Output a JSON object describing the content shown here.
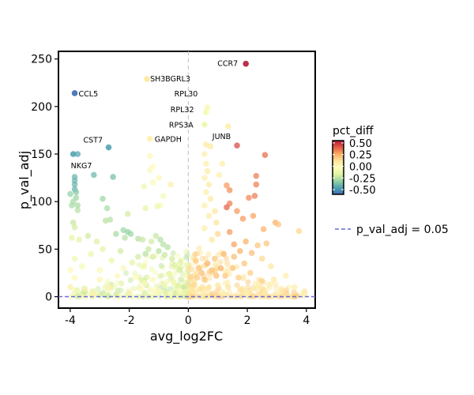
{
  "chart_data": {
    "type": "scatter",
    "title": "",
    "xlabel": "avg_log2FC",
    "ylabel": "p_val_adj",
    "xlim": [
      -4.4,
      4.3
    ],
    "ylim": [
      -12,
      258
    ],
    "x_ticks": [
      -4,
      -2,
      0,
      2,
      4
    ],
    "y_ticks": [
      0,
      50,
      100,
      150,
      200,
      250
    ],
    "grid": false,
    "vline": 0,
    "threshold": {
      "value": 0.05,
      "label": "p_val_adj = 0.05",
      "color": "#6a6ad8"
    },
    "color_scale": {
      "title": "pct_diff",
      "min": -0.6,
      "max": 0.55,
      "ticks": [
        0.5,
        0.25,
        0.0,
        -0.25,
        -0.5
      ],
      "tick_labels": [
        "0.50",
        "0.25",
        "0.00",
        "-0.25",
        "-0.50"
      ],
      "palette": "Spectral",
      "stops": [
        "#3d6db4",
        "#4fa3b3",
        "#96d4a4",
        "#e3f3a2",
        "#fffcbd",
        "#fde49a",
        "#fcad62",
        "#e45b45",
        "#b6193a"
      ]
    },
    "legend_position": "right",
    "labeled_points": [
      {
        "gene": "CCR7",
        "x": 1.95,
        "y": 245,
        "pct_diff": 0.55
      },
      {
        "gene": "SH3BGRL3",
        "x": -1.4,
        "y": 229,
        "pct_diff": 0.1
      },
      {
        "gene": "CCL5",
        "x": -3.85,
        "y": 214,
        "pct_diff": -0.6
      },
      {
        "gene": "RPL30",
        "x": 0.65,
        "y": 199,
        "pct_diff": -0.05
      },
      {
        "gene": "RPL32",
        "x": 0.6,
        "y": 194,
        "pct_diff": -0.08
      },
      {
        "gene": "RPS3A",
        "x": 0.55,
        "y": 181,
        "pct_diff": -0.1
      },
      {
        "gene": "JUNB",
        "x": 1.35,
        "y": 179,
        "pct_diff": 0.05
      },
      {
        "gene": "GAPDH",
        "x": -1.3,
        "y": 166,
        "pct_diff": 0.05
      },
      {
        "gene": "CST7",
        "x": -2.7,
        "y": 157,
        "pct_diff": -0.45
      },
      {
        "gene": "NKG7",
        "x": -3.9,
        "y": 150,
        "pct_diff": -0.45
      }
    ],
    "points": [
      {
        "x": 1.65,
        "y": 159,
        "c": 0.45
      },
      {
        "x": 2.6,
        "y": 149,
        "c": 0.38
      },
      {
        "x": -3.75,
        "y": 150,
        "c": -0.45
      },
      {
        "x": -3.2,
        "y": 128,
        "c": -0.4
      },
      {
        "x": -2.55,
        "y": 126,
        "c": -0.38
      },
      {
        "x": -3.85,
        "y": 126,
        "c": -0.4
      },
      {
        "x": -3.85,
        "y": 122,
        "c": -0.4
      },
      {
        "x": -3.85,
        "y": 118,
        "c": -0.4
      },
      {
        "x": -3.85,
        "y": 113,
        "c": -0.4
      },
      {
        "x": -4.0,
        "y": 108,
        "c": -0.32
      },
      {
        "x": -3.8,
        "y": 110,
        "c": -0.35
      },
      {
        "x": -3.8,
        "y": 104,
        "c": -0.3
      },
      {
        "x": -2.9,
        "y": 103,
        "c": -0.3
      },
      {
        "x": -3.9,
        "y": 100,
        "c": -0.28
      },
      {
        "x": -3.75,
        "y": 96,
        "c": -0.28
      },
      {
        "x": -3.75,
        "y": 91,
        "c": -0.25
      },
      {
        "x": -3.95,
        "y": 96,
        "c": -0.28
      },
      {
        "x": -2.75,
        "y": 93,
        "c": -0.28
      },
      {
        "x": -2.65,
        "y": 81,
        "c": -0.25
      },
      {
        "x": -2.8,
        "y": 80,
        "c": -0.25
      },
      {
        "x": -3.9,
        "y": 78,
        "c": -0.22
      },
      {
        "x": -3.85,
        "y": 73,
        "c": -0.2
      },
      {
        "x": -2.05,
        "y": 87,
        "c": -0.2
      },
      {
        "x": -1.45,
        "y": 93,
        "c": -0.15
      },
      {
        "x": -1.5,
        "y": 116,
        "c": -0.1
      },
      {
        "x": -0.85,
        "y": 106,
        "c": -0.08
      },
      {
        "x": -1.0,
        "y": 125,
        "c": -0.05
      },
      {
        "x": -1.2,
        "y": 137,
        "c": -0.02
      },
      {
        "x": -1.2,
        "y": 120,
        "c": -0.05
      },
      {
        "x": -0.95,
        "y": 96,
        "c": -0.05
      },
      {
        "x": -0.6,
        "y": 118,
        "c": 0.05
      },
      {
        "x": -1.05,
        "y": 95,
        "c": -0.1
      },
      {
        "x": -1.3,
        "y": 148,
        "c": 0.0
      },
      {
        "x": -1.3,
        "y": 133,
        "c": -0.05
      },
      {
        "x": 2.3,
        "y": 127,
        "c": 0.35
      },
      {
        "x": 2.3,
        "y": 118,
        "c": 0.35
      },
      {
        "x": 1.3,
        "y": 117,
        "c": 0.3
      },
      {
        "x": 1.4,
        "y": 112,
        "c": 0.32
      },
      {
        "x": 2.25,
        "y": 106,
        "c": 0.35
      },
      {
        "x": 2.05,
        "y": 104,
        "c": 0.33
      },
      {
        "x": 1.4,
        "y": 98,
        "c": 0.35
      },
      {
        "x": 1.3,
        "y": 94,
        "c": 0.4
      },
      {
        "x": 1.65,
        "y": 90,
        "c": 0.3
      },
      {
        "x": 1.85,
        "y": 82,
        "c": 0.3
      },
      {
        "x": 2.2,
        "y": 85,
        "c": 0.28
      },
      {
        "x": 2.95,
        "y": 78,
        "c": 0.25
      },
      {
        "x": 3.05,
        "y": 76,
        "c": 0.2
      },
      {
        "x": 3.75,
        "y": 69,
        "c": 0.15
      },
      {
        "x": 2.55,
        "y": 71,
        "c": 0.25
      },
      {
        "x": 1.4,
        "y": 68,
        "c": 0.3
      },
      {
        "x": 1.55,
        "y": 55,
        "c": 0.28
      },
      {
        "x": 1.95,
        "y": 58,
        "c": 0.25
      },
      {
        "x": 2.35,
        "y": 54,
        "c": 0.2
      },
      {
        "x": 2.65,
        "y": 56,
        "c": 0.2
      },
      {
        "x": 1.75,
        "y": 48,
        "c": 0.25
      },
      {
        "x": 2.15,
        "y": 46,
        "c": 0.22
      },
      {
        "x": 0.6,
        "y": 160,
        "c": 0.08
      },
      {
        "x": 0.75,
        "y": 158,
        "c": 0.08
      },
      {
        "x": 0.55,
        "y": 150,
        "c": 0.05
      },
      {
        "x": 0.6,
        "y": 140,
        "c": 0.05
      },
      {
        "x": 0.65,
        "y": 132,
        "c": 0.08
      },
      {
        "x": 0.55,
        "y": 125,
        "c": 0.05
      },
      {
        "x": 0.7,
        "y": 118,
        "c": 0.08
      },
      {
        "x": 0.6,
        "y": 110,
        "c": 0.05
      },
      {
        "x": 0.75,
        "y": 103,
        "c": 0.08
      },
      {
        "x": 0.55,
        "y": 96,
        "c": 0.05
      },
      {
        "x": 0.9,
        "y": 90,
        "c": 0.1
      },
      {
        "x": 0.7,
        "y": 85,
        "c": 0.08
      },
      {
        "x": 0.95,
        "y": 78,
        "c": 0.12
      },
      {
        "x": 0.55,
        "y": 72,
        "c": 0.05
      },
      {
        "x": 1.0,
        "y": 66,
        "c": 0.15
      },
      {
        "x": 0.8,
        "y": 60,
        "c": 0.1
      },
      {
        "x": 1.15,
        "y": 140,
        "c": 0.05
      },
      {
        "x": 1.05,
        "y": 128,
        "c": 0.05
      },
      {
        "x": -2.2,
        "y": 70,
        "c": -0.3
      },
      {
        "x": -2.05,
        "y": 68,
        "c": -0.32
      },
      {
        "x": -1.95,
        "y": 66,
        "c": -0.3
      },
      {
        "x": -2.45,
        "y": 66,
        "c": -0.28
      },
      {
        "x": -2.15,
        "y": 62,
        "c": -0.25
      },
      {
        "x": -1.7,
        "y": 61,
        "c": -0.25
      },
      {
        "x": -1.55,
        "y": 60,
        "c": -0.22
      },
      {
        "x": -1.25,
        "y": 58,
        "c": -0.2
      },
      {
        "x": -1.1,
        "y": 64,
        "c": -0.22
      },
      {
        "x": -0.95,
        "y": 60,
        "c": -0.25
      },
      {
        "x": -0.85,
        "y": 55,
        "c": -0.25
      },
      {
        "x": -0.7,
        "y": 52,
        "c": -0.25
      },
      {
        "x": -1.35,
        "y": 50,
        "c": -0.22
      },
      {
        "x": -1.0,
        "y": 48,
        "c": -0.25
      },
      {
        "x": -1.45,
        "y": 45,
        "c": -0.25
      },
      {
        "x": -0.8,
        "y": 44,
        "c": -0.22
      },
      {
        "x": -1.7,
        "y": 42,
        "c": -0.2
      },
      {
        "x": -1.2,
        "y": 42,
        "c": -0.2
      },
      {
        "x": -0.55,
        "y": 40,
        "c": -0.2
      },
      {
        "x": -2.3,
        "y": 48,
        "c": -0.2
      },
      {
        "x": -3.4,
        "y": 64,
        "c": -0.2
      },
      {
        "x": -3.1,
        "y": 58,
        "c": -0.18
      },
      {
        "x": -3.7,
        "y": 60,
        "c": -0.15
      },
      {
        "x": -3.95,
        "y": 62,
        "c": -0.15
      },
      {
        "x": -2.9,
        "y": 50,
        "c": -0.15
      },
      {
        "x": -3.3,
        "y": 45,
        "c": -0.12
      },
      {
        "x": -3.85,
        "y": 40,
        "c": -0.1
      },
      {
        "x": -2.6,
        "y": 38,
        "c": -0.12
      },
      {
        "x": -1.9,
        "y": 36,
        "c": -0.15
      },
      {
        "x": -0.3,
        "y": 28,
        "c": -0.2
      },
      {
        "x": -0.45,
        "y": 33,
        "c": -0.18
      },
      {
        "x": -0.65,
        "y": 24,
        "c": -0.15
      },
      {
        "x": -0.25,
        "y": 18,
        "c": -0.2
      },
      {
        "x": -0.15,
        "y": 10,
        "c": -0.22
      },
      {
        "x": -0.1,
        "y": 5,
        "c": -0.15
      },
      {
        "x": -0.35,
        "y": 12,
        "c": -0.18
      },
      {
        "x": -0.5,
        "y": 15,
        "c": -0.12
      },
      {
        "x": -1.5,
        "y": 32,
        "c": -0.1
      },
      {
        "x": -2.2,
        "y": 30,
        "c": -0.05
      },
      {
        "x": -3.0,
        "y": 28,
        "c": -0.05
      },
      {
        "x": -3.6,
        "y": 32,
        "c": -0.08
      },
      {
        "x": -4.0,
        "y": 28,
        "c": 0.0
      },
      {
        "x": -3.85,
        "y": 20,
        "c": 0.0
      },
      {
        "x": -3.0,
        "y": 18,
        "c": 0.02
      },
      {
        "x": -2.4,
        "y": 22,
        "c": 0.0
      },
      {
        "x": -1.8,
        "y": 20,
        "c": -0.02
      },
      {
        "x": -1.2,
        "y": 18,
        "c": -0.05
      },
      {
        "x": -0.8,
        "y": 12,
        "c": -0.08
      },
      {
        "x": -2.7,
        "y": 10,
        "c": 0.03
      },
      {
        "x": -3.5,
        "y": 8,
        "c": 0.05
      },
      {
        "x": -1.6,
        "y": 8,
        "c": 0.0
      },
      {
        "x": -1.0,
        "y": 6,
        "c": 0.0
      },
      {
        "x": -2.0,
        "y": 4,
        "c": 0.02
      },
      {
        "x": -3.2,
        "y": 3,
        "c": 0.03
      },
      {
        "x": -0.6,
        "y": 3,
        "c": -0.05
      },
      {
        "x": -4.0,
        "y": 10,
        "c": 0.05
      },
      {
        "x": 0.25,
        "y": 38,
        "c": 0.2
      },
      {
        "x": 0.35,
        "y": 30,
        "c": 0.2
      },
      {
        "x": 0.45,
        "y": 25,
        "c": 0.22
      },
      {
        "x": 0.3,
        "y": 20,
        "c": 0.18
      },
      {
        "x": 0.55,
        "y": 18,
        "c": 0.2
      },
      {
        "x": 0.2,
        "y": 12,
        "c": 0.15
      },
      {
        "x": 0.65,
        "y": 35,
        "c": 0.25
      },
      {
        "x": 0.8,
        "y": 28,
        "c": 0.2
      },
      {
        "x": 0.95,
        "y": 22,
        "c": 0.22
      },
      {
        "x": 1.1,
        "y": 30,
        "c": 0.25
      },
      {
        "x": 0.9,
        "y": 40,
        "c": 0.2
      },
      {
        "x": 1.25,
        "y": 22,
        "c": 0.2
      },
      {
        "x": 1.5,
        "y": 30,
        "c": 0.2
      },
      {
        "x": 1.7,
        "y": 20,
        "c": 0.18
      },
      {
        "x": 1.9,
        "y": 35,
        "c": 0.2
      },
      {
        "x": 2.1,
        "y": 25,
        "c": 0.18
      },
      {
        "x": 0.15,
        "y": 6,
        "c": 0.1
      },
      {
        "x": 0.4,
        "y": 8,
        "c": 0.12
      },
      {
        "x": 0.7,
        "y": 10,
        "c": 0.12
      },
      {
        "x": 1.0,
        "y": 12,
        "c": 0.1
      },
      {
        "x": 1.35,
        "y": 10,
        "c": 0.12
      },
      {
        "x": 1.8,
        "y": 8,
        "c": 0.1
      },
      {
        "x": 2.4,
        "y": 12,
        "c": 0.08
      },
      {
        "x": 2.9,
        "y": 18,
        "c": 0.08
      },
      {
        "x": 3.3,
        "y": 22,
        "c": 0.05
      },
      {
        "x": 3.6,
        "y": 10,
        "c": 0.05
      },
      {
        "x": 2.6,
        "y": 5,
        "c": 0.05
      },
      {
        "x": 3.0,
        "y": 4,
        "c": 0.05
      },
      {
        "x": 3.9,
        "y": 3,
        "c": 0.03
      },
      {
        "x": 2.0,
        "y": 3,
        "c": 0.05
      },
      {
        "x": 1.2,
        "y": 3,
        "c": 0.05
      },
      {
        "x": 0.5,
        "y": 2,
        "c": 0.05
      },
      {
        "x": 1.55,
        "y": 42,
        "c": 0.22
      },
      {
        "x": 1.2,
        "y": 45,
        "c": 0.25
      },
      {
        "x": 2.5,
        "y": 40,
        "c": 0.15
      },
      {
        "x": 2.8,
        "y": 32,
        "c": 0.1
      }
    ]
  }
}
